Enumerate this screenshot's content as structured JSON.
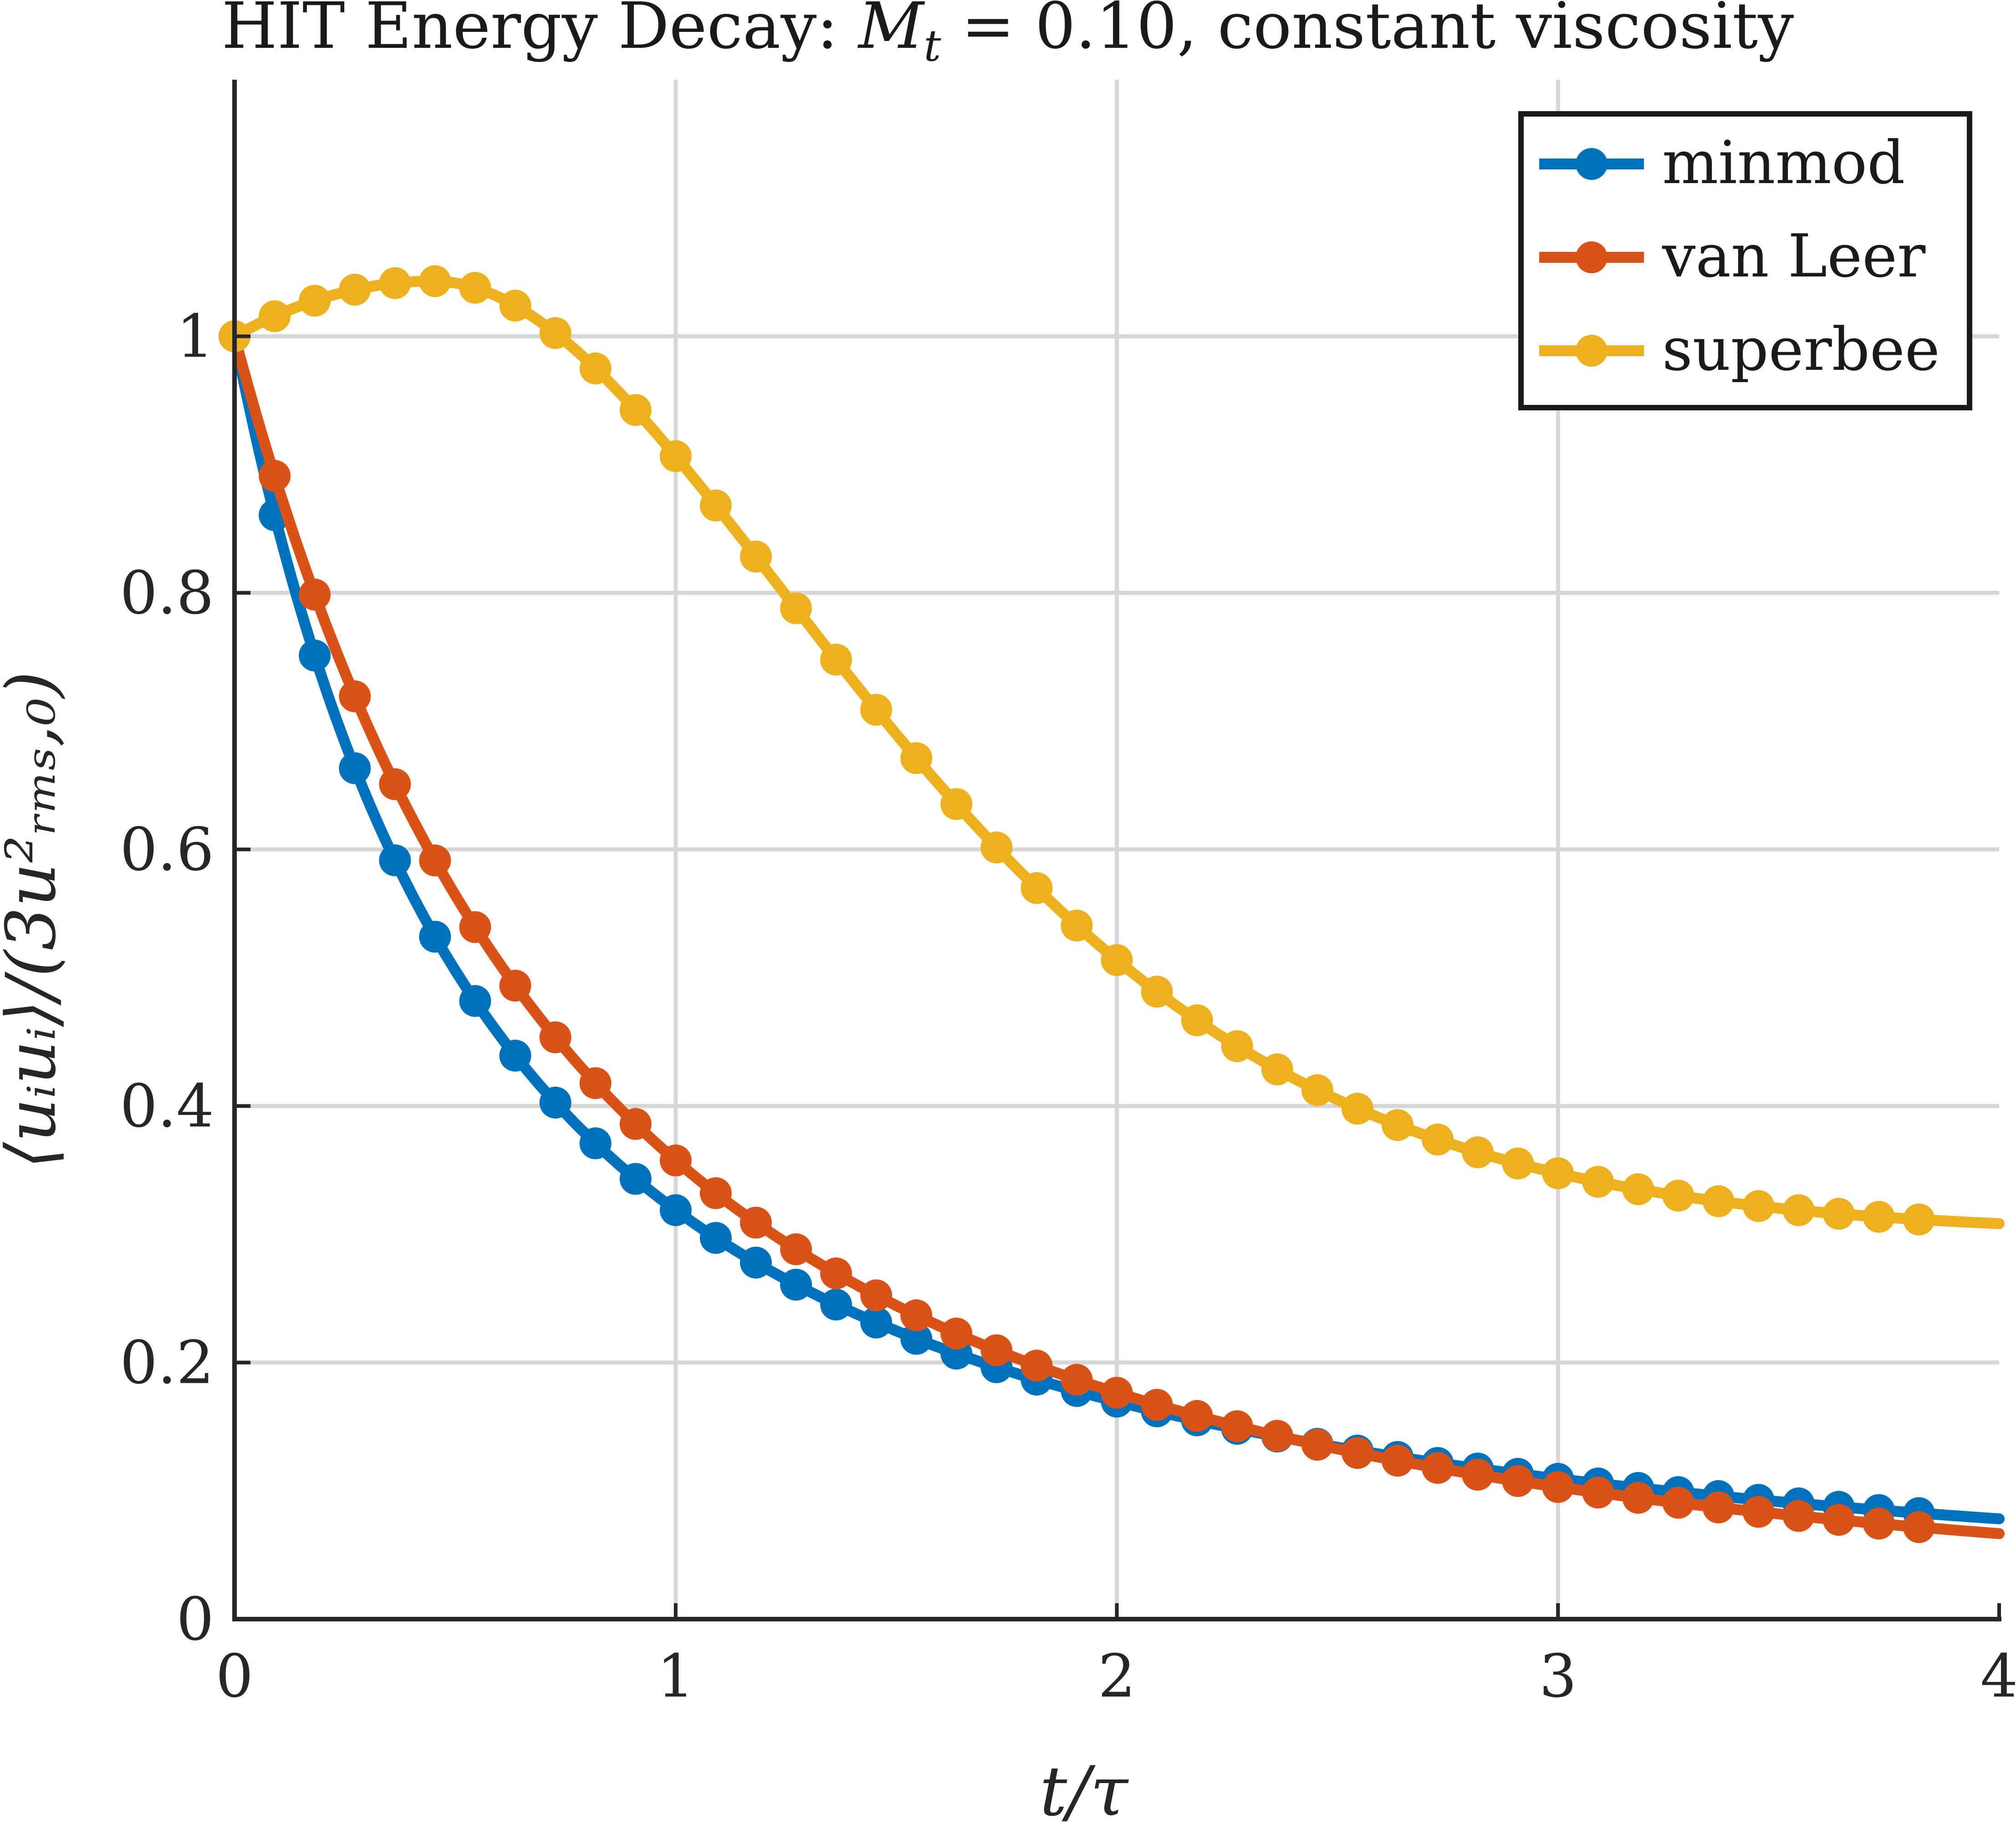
{
  "chart_data": {
    "type": "line",
    "title_prefix": "HIT Energy Decay: ",
    "title_math": {
      "symbol": "M",
      "subscript": "t",
      "relation": " = 0.10"
    },
    "title_suffix": ", constant viscosity",
    "xlabel": "t/τ",
    "ylabel": "⟨uᵢuᵢ⟩/(3u²ᵣₘₛ,₀)",
    "xlim": [
      0,
      4
    ],
    "ylim": [
      0,
      1.2
    ],
    "xticks": [
      0,
      1,
      2,
      3,
      4
    ],
    "yticks": [
      0,
      0.2,
      0.4,
      0.6,
      0.8,
      1
    ],
    "xtick_labels": [
      "0",
      "1",
      "2",
      "3",
      "4"
    ],
    "ytick_labels": [
      "0",
      "0.2",
      "0.4",
      "0.6",
      "0.8",
      "1"
    ],
    "grid": true,
    "legend_position": "top-right",
    "marker_step": 0.09091,
    "series": [
      {
        "name": "minmod",
        "color": "#0072BD",
        "formula": "minmod_decay"
      },
      {
        "name": "van Leer",
        "color": "#D95319",
        "formula": "vanleer_decay"
      },
      {
        "name": "superbee",
        "color": "#EDB120",
        "formula": "superbee_decay"
      }
    ]
  }
}
